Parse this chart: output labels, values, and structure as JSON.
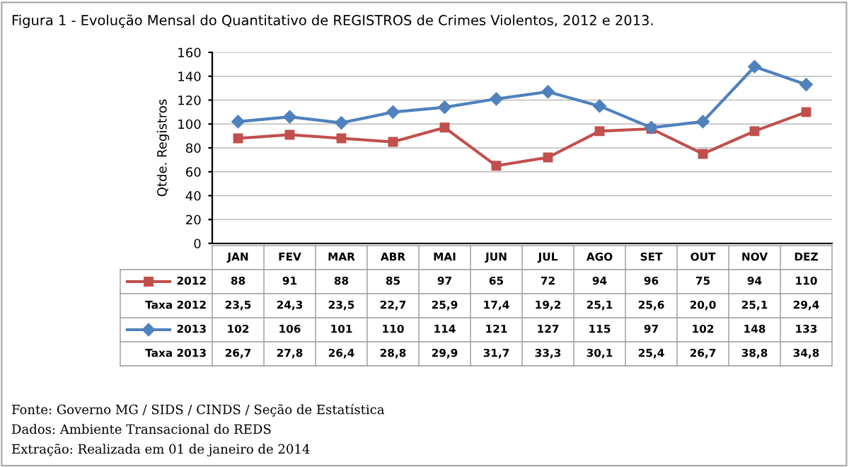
{
  "chart_data": {
    "type": "line",
    "title": "Figura 1 - Evolução Mensal do Quantitativo de REGISTROS de Crimes Violentos, 2012 e 2013.",
    "ylabel": "Qtde. Registros",
    "categories": [
      "JAN",
      "FEV",
      "MAR",
      "ABR",
      "MAI",
      "JUN",
      "JUL",
      "AGO",
      "SET",
      "OUT",
      "NOV",
      "DEZ"
    ],
    "series": [
      {
        "name": "2012",
        "color": "#c0504d",
        "marker": "square",
        "values": [
          88,
          91,
          88,
          85,
          97,
          65,
          72,
          94,
          96,
          75,
          94,
          110
        ]
      },
      {
        "name": "2013",
        "color": "#4f81bd",
        "marker": "diamond",
        "values": [
          102,
          106,
          101,
          110,
          114,
          121,
          127,
          115,
          97,
          102,
          148,
          133
        ]
      }
    ],
    "ylim": [
      0,
      160
    ],
    "yticks": [
      0,
      20,
      40,
      60,
      80,
      100,
      120,
      140,
      160
    ],
    "grid": "y",
    "data_labels": true,
    "legend": "left",
    "annotations": [
      "Taxa 2012",
      "23,5",
      "24,3",
      "23,5",
      "22,7",
      "25,9",
      "17,4",
      "19,2",
      "25,1",
      "25,6",
      "20,0",
      "25,1",
      "29,4",
      "Taxa 2013",
      "26,7",
      "27,8",
      "26,4",
      "28,8",
      "29,9",
      "31,7",
      "33,3",
      "30,1",
      "25,4",
      "26,7",
      "38,8",
      "34,8",
      "Fonte: Governo MG / SIDS / CINDS / Seção de Estatística",
      "Dados: Ambiente Transacional do REDS",
      "Extração: Realizada em 01 de janeiro de 2014"
    ]
  }
}
